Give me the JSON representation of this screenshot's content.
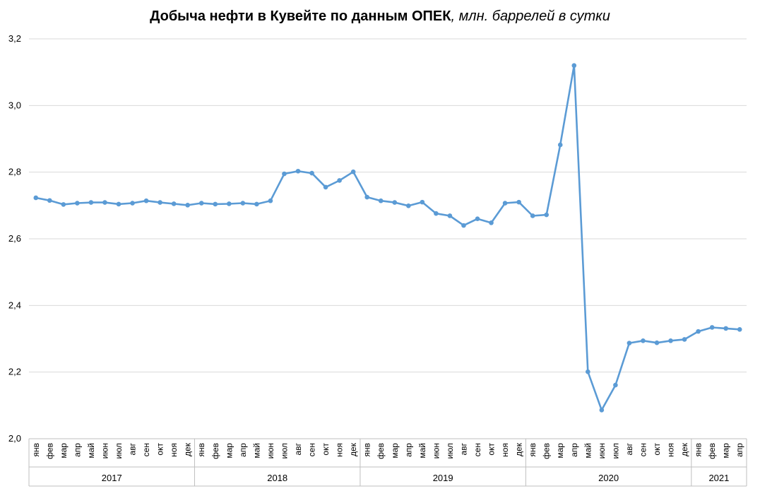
{
  "chart_data": {
    "type": "line",
    "title_bold": "Добыча нефти в Кувейте по данным ОПЕК",
    "title_italic": ", млн. баррелей в сутки",
    "xlabel": "",
    "ylabel": "",
    "ylim": [
      2.0,
      3.2
    ],
    "y_ticks": [
      "2,0",
      "2,2",
      "2,4",
      "2,6",
      "2,8",
      "3,0",
      "3,2"
    ],
    "grid": true,
    "legend": "none",
    "line_color": "#5B9BD5",
    "month_labels": [
      "янв",
      "фев",
      "мар",
      "апр",
      "май",
      "июн",
      "июл",
      "авг",
      "сен",
      "окт",
      "ноя",
      "дек"
    ],
    "years": [
      {
        "label": "2017",
        "months": 12
      },
      {
        "label": "2018",
        "months": 12
      },
      {
        "label": "2019",
        "months": 12
      },
      {
        "label": "2020",
        "months": 12
      },
      {
        "label": "2021",
        "months": 4
      }
    ],
    "values": [
      2.723,
      2.715,
      2.703,
      2.707,
      2.709,
      2.709,
      2.704,
      2.707,
      2.714,
      2.709,
      2.705,
      2.701,
      2.707,
      2.704,
      2.705,
      2.707,
      2.704,
      2.714,
      2.795,
      2.803,
      2.797,
      2.755,
      2.775,
      2.801,
      2.725,
      2.714,
      2.709,
      2.699,
      2.71,
      2.676,
      2.669,
      2.64,
      2.66,
      2.648,
      2.707,
      2.71,
      2.669,
      2.672,
      2.882,
      3.12,
      2.201,
      2.086,
      2.161,
      2.287,
      2.294,
      2.288,
      2.294,
      2.298,
      2.322,
      2.334,
      2.331,
      2.328
    ]
  }
}
